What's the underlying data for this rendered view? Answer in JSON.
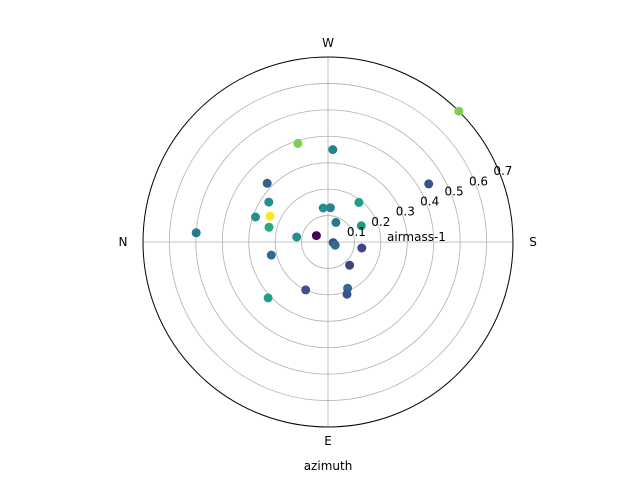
{
  "chart_data": {
    "type": "scatter",
    "projection": "polar",
    "title": "",
    "xlabel": "azimuth",
    "ylabel": "airmass-1",
    "direction_labels": [
      "W",
      "S",
      "E",
      "N"
    ],
    "r_ticks": [
      "0.1",
      "0.2",
      "0.3",
      "0.4",
      "0.5",
      "0.6",
      "0.7"
    ],
    "r_tick_values": [
      0.1,
      0.2,
      0.3,
      0.4,
      0.5,
      0.6,
      0.7
    ],
    "rlim": [
      0,
      0.7
    ],
    "grid": true,
    "colormap": "viridis",
    "points": [
      {
        "az": 315.0,
        "r": 0.7,
        "c": 0.8
      },
      {
        "az": 300.0,
        "r": 0.44,
        "c": 0.25
      },
      {
        "az": 357.0,
        "r": 0.35,
        "c": 0.45
      },
      {
        "az": 17.0,
        "r": 0.39,
        "c": 0.8
      },
      {
        "az": 46.0,
        "r": 0.32,
        "c": 0.3
      },
      {
        "az": 56.0,
        "r": 0.27,
        "c": 0.5
      },
      {
        "az": 66.0,
        "r": 0.24,
        "c": 1.0
      },
      {
        "az": 71.0,
        "r": 0.29,
        "c": 0.5
      },
      {
        "az": 76.0,
        "r": 0.23,
        "c": 0.6
      },
      {
        "az": 86.0,
        "r": 0.5,
        "c": 0.4
      },
      {
        "az": 81.0,
        "r": 0.12,
        "c": 0.5
      },
      {
        "az": 61.0,
        "r": 0.05,
        "c": 0.0
      },
      {
        "az": 356.0,
        "r": 0.13,
        "c": 0.45
      },
      {
        "az": 8.0,
        "r": 0.13,
        "c": 0.5
      },
      {
        "az": 322.0,
        "r": 0.19,
        "c": 0.55
      },
      {
        "az": 296.0,
        "r": 0.14,
        "c": 0.55
      },
      {
        "az": 338.0,
        "r": 0.08,
        "c": 0.4
      },
      {
        "az": 260.0,
        "r": 0.13,
        "c": 0.2
      },
      {
        "az": 263.0,
        "r": 0.02,
        "c": 0.25
      },
      {
        "az": 246.0,
        "r": 0.03,
        "c": 0.35
      },
      {
        "az": 223.0,
        "r": 0.12,
        "c": 0.2
      },
      {
        "az": 203.0,
        "r": 0.19,
        "c": 0.35
      },
      {
        "az": 200.0,
        "r": 0.21,
        "c": 0.25
      },
      {
        "az": 155.0,
        "r": 0.2,
        "c": 0.25
      },
      {
        "az": 133.0,
        "r": 0.31,
        "c": 0.55
      },
      {
        "az": 103.0,
        "r": 0.22,
        "c": 0.35
      }
    ]
  }
}
